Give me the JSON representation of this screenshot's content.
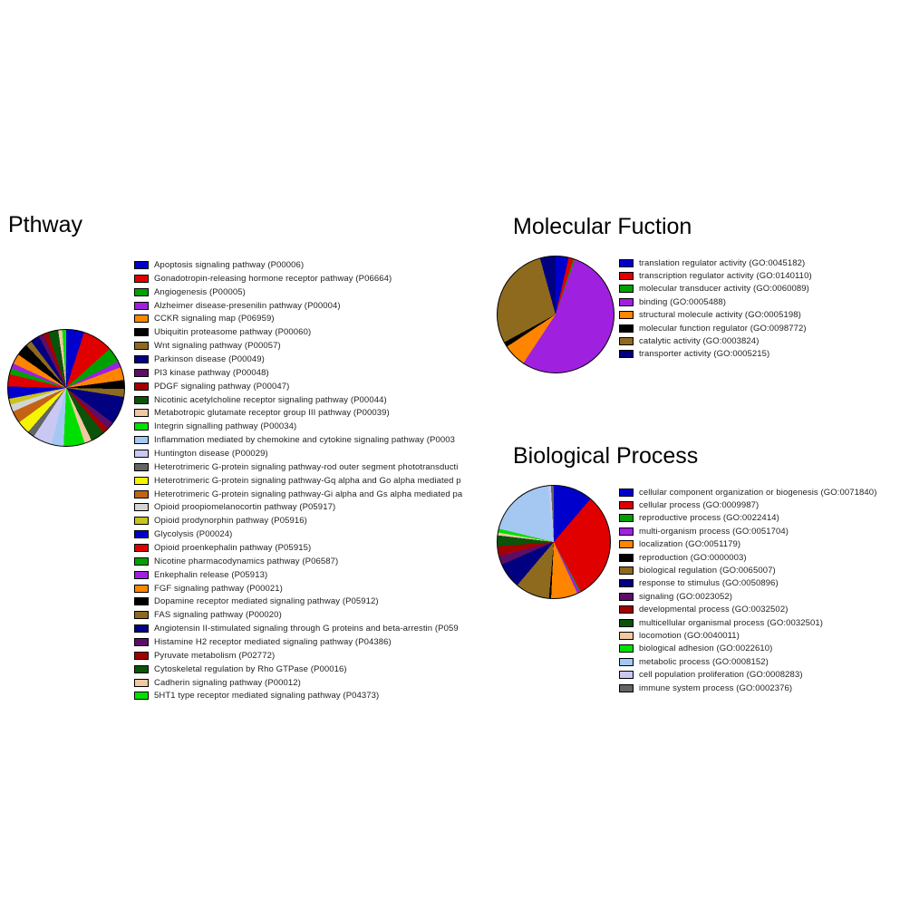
{
  "page": {
    "background": "#ffffff"
  },
  "chart_data": [
    {
      "type": "pie",
      "title": "Pthway",
      "legend_position": "right",
      "values_note": "percent estimated from arc angles; no numeric labels shown in figure",
      "slices": [
        {
          "label": "Apoptosis signaling pathway (P00006)",
          "color": "#0000CC",
          "percent": 5.0
        },
        {
          "label": "Gonadotropin-releasing hormone receptor pathway (P06664)",
          "color": "#E00000",
          "percent": 8.4
        },
        {
          "label": "Angiogenesis (P00005)",
          "color": "#00A000",
          "percent": 4.2
        },
        {
          "label": "Alzheimer disease-presenilin pathway (P00004)",
          "color": "#A020E0",
          "percent": 1.7
        },
        {
          "label": "CCKR signaling map (P06959)",
          "color": "#FF8400",
          "percent": 3.6
        },
        {
          "label": "Ubiquitin proteasome pathway (P00060)",
          "color": "#000000",
          "percent": 2.5
        },
        {
          "label": "Wnt signaling pathway (P00057)",
          "color": "#8E6A1E",
          "percent": 2.2
        },
        {
          "label": "Parkinson disease (P00049)",
          "color": "#000080",
          "percent": 7.8
        },
        {
          "label": "PI3 kinase pathway (P00048)",
          "color": "#5C0E66",
          "percent": 2.0
        },
        {
          "label": "PDGF signaling pathway (P00047)",
          "color": "#A30000",
          "percent": 1.7
        },
        {
          "label": "Nicotinic acetylcholine receptor signaling pathway (P00044)",
          "color": "#0A540A",
          "percent": 3.9
        },
        {
          "label": "Metabotropic glutamate receptor group III pathway (P00039)",
          "color": "#F2C8A2",
          "percent": 2.0
        },
        {
          "label": "Integrin signalling pathway (P00034)",
          "color": "#00E000",
          "percent": 5.9
        },
        {
          "label": "Inflammation mediated by chemokine and cytokine signaling pathway (P0003",
          "color": "#A4C8F2",
          "percent": 3.4
        },
        {
          "label": "Huntington disease (P00029)",
          "color": "#C8C8F2",
          "percent": 5.3
        },
        {
          "label": "Heterotrimeric G-protein signaling pathway-rod outer segment phototransducti",
          "color": "#646464",
          "percent": 2.0
        },
        {
          "label": "Heterotrimeric G-protein signaling pathway-Gq alpha and Go alpha mediated p",
          "color": "#F5F500",
          "percent": 3.6
        },
        {
          "label": "Heterotrimeric G-protein signaling pathway-Gi alpha and Gs alpha mediated pa",
          "color": "#C26414",
          "percent": 3.4
        },
        {
          "label": "Opioid proopiomelanocortin pathway (P05917)",
          "color": "#D4D4D4",
          "percent": 2.0
        },
        {
          "label": "Opioid prodynorphin pathway (P05916)",
          "color": "#C8C31E",
          "percent": 1.7
        },
        {
          "label": "Glycolysis (P00024)",
          "color": "#0000CC",
          "percent": 3.4
        },
        {
          "label": "Opioid proenkephalin pathway (P05915)",
          "color": "#E00000",
          "percent": 3.4
        },
        {
          "label": "Nicotine pharmacodynamics pathway (P06587)",
          "color": "#00A000",
          "percent": 1.7
        },
        {
          "label": "Enkephalin release (P05913)",
          "color": "#A020E0",
          "percent": 1.4
        },
        {
          "label": "FGF signaling pathway (P00021)",
          "color": "#FF8400",
          "percent": 2.8
        },
        {
          "label": "Dopamine receptor mediated signaling pathway (P05912)",
          "color": "#000000",
          "percent": 3.4
        },
        {
          "label": "FAS signaling pathway (P00020)",
          "color": "#8E6A1E",
          "percent": 1.7
        },
        {
          "label": "Angiotensin II-stimulated signaling through G proteins and beta-arrestin (P059",
          "color": "#000080",
          "percent": 2.5
        },
        {
          "label": "Histamine H2 receptor mediated signaling pathway (P04386)",
          "color": "#5C0E66",
          "percent": 1.4
        },
        {
          "label": "Pyruvate metabolism (P02772)",
          "color": "#A30000",
          "percent": 1.4
        },
        {
          "label": "Cytoskeletal regulation by Rho GTPase (P00016)",
          "color": "#0A540A",
          "percent": 2.8
        },
        {
          "label": "Cadherin signaling pathway (P00012)",
          "color": "#F2C8A2",
          "percent": 1.1
        },
        {
          "label": "5HT1 type receptor mediated signaling pathway (P04373)",
          "color": "#00E000",
          "percent": 1.1
        }
      ]
    },
    {
      "type": "pie",
      "title": "Molecular Fuction",
      "legend_position": "right",
      "values_note": "percent estimated from arc angles; no numeric labels shown in figure",
      "slices": [
        {
          "label": "translation regulator activity (GO:0045182)",
          "color": "#0000CC",
          "percent": 3.6
        },
        {
          "label": "transcription regulator activity (GO:0140110)",
          "color": "#E00000",
          "percent": 1.4
        },
        {
          "label": "molecular transducer activity (GO:0060089)",
          "color": "#00A000",
          "percent": 0.4
        },
        {
          "label": "binding (GO:0005488)",
          "color": "#A020E0",
          "percent": 53.9
        },
        {
          "label": "structural molecule activity (GO:0005198)",
          "color": "#FF8400",
          "percent": 6.4
        },
        {
          "label": "molecular function regulator (GO:0098772)",
          "color": "#000000",
          "percent": 1.4
        },
        {
          "label": "catalytic activity (GO:0003824)",
          "color": "#8E6A1E",
          "percent": 28.6
        },
        {
          "label": "transporter activity (GO:0005215)",
          "color": "#000080",
          "percent": 4.3
        }
      ]
    },
    {
      "type": "pie",
      "title": "Biological Process",
      "legend_position": "right",
      "values_note": "percent estimated from arc angles; no numeric labels shown in figure",
      "slices": [
        {
          "label": "cellular component organization or biogenesis (GO:0071840)",
          "color": "#0000CC",
          "percent": 11.2
        },
        {
          "label": "cellular process (GO:0009987)",
          "color": "#E00000",
          "percent": 30.8
        },
        {
          "label": "reproductive process (GO:0022414)",
          "color": "#00A000",
          "percent": 0.3
        },
        {
          "label": "multi-organism process (GO:0051704)",
          "color": "#A020E0",
          "percent": 0.8
        },
        {
          "label": "localization (GO:0051179)",
          "color": "#FF8400",
          "percent": 7.6
        },
        {
          "label": "reproduction (GO:0000003)",
          "color": "#000000",
          "percent": 0.6
        },
        {
          "label": "biological regulation (GO:0065007)",
          "color": "#8E6A1E",
          "percent": 9.8
        },
        {
          "label": "response to stimulus (GO:0050896)",
          "color": "#000080",
          "percent": 7.3
        },
        {
          "label": "signaling (GO:0023052)",
          "color": "#5C0E66",
          "percent": 2.5
        },
        {
          "label": "developmental process (GO:0032502)",
          "color": "#A30000",
          "percent": 2.8
        },
        {
          "label": "multicellular organismal process (GO:0032501)",
          "color": "#0A540A",
          "percent": 3.1
        },
        {
          "label": "locomotion (GO:0040011)",
          "color": "#F2C8A2",
          "percent": 0.8
        },
        {
          "label": "biological adhesion (GO:0022610)",
          "color": "#00E000",
          "percent": 1.1
        },
        {
          "label": "metabolic process (GO:0008152)",
          "color": "#A4C8F2",
          "percent": 19.6
        },
        {
          "label": "cell population proliferation (GO:0008283)",
          "color": "#C8C8F2",
          "percent": 0.8
        },
        {
          "label": "immune system process (GO:0002376)",
          "color": "#646464",
          "percent": 0.8
        }
      ]
    }
  ]
}
